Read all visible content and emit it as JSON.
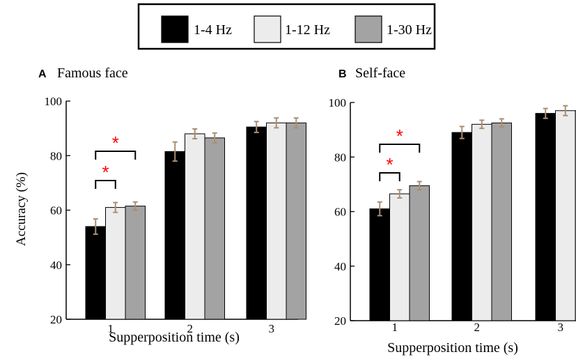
{
  "legend": {
    "items": [
      {
        "label": "1-4 Hz",
        "color": "#000000"
      },
      {
        "label": "1-12 Hz",
        "color": "#ececec"
      },
      {
        "label": "1-30 Hz",
        "color": "#a3a3a3"
      }
    ]
  },
  "colors": {
    "error_bar": "#a98e73",
    "significance": "#ff0000",
    "bracket": "#000000"
  },
  "significance_mark": "*",
  "chart_data": [
    {
      "type": "bar",
      "panel_letter": "A",
      "title": "Famous face",
      "xlabel": "Supperposition time (s)",
      "ylabel": "Accuracy (%)",
      "categories": [
        "1",
        "2",
        "3"
      ],
      "ylim": [
        20,
        100
      ],
      "yticks": [
        20,
        40,
        60,
        80,
        100
      ],
      "grid": false,
      "series": [
        {
          "name": "1-4 Hz",
          "values": [
            54,
            81.5,
            90.5
          ],
          "errors": [
            2.8,
            3.5,
            2.0
          ]
        },
        {
          "name": "1-12 Hz",
          "values": [
            61,
            88,
            92
          ],
          "errors": [
            1.8,
            1.8,
            1.8
          ]
        },
        {
          "name": "1-30 Hz",
          "values": [
            61.5,
            86.5,
            92
          ],
          "errors": [
            1.5,
            1.8,
            1.8
          ]
        }
      ],
      "significance": [
        {
          "category": "1",
          "from": "1-4 Hz",
          "to": "1-12 Hz",
          "label": "*"
        },
        {
          "category": "1",
          "from": "1-4 Hz",
          "to": "1-30 Hz",
          "label": "*"
        }
      ]
    },
    {
      "type": "bar",
      "panel_letter": "B",
      "title": "Self-face",
      "xlabel": "Supperposition time (s)",
      "ylabel": "",
      "categories": [
        "1",
        "2",
        "3"
      ],
      "ylim": [
        20,
        100
      ],
      "yticks": [
        20,
        40,
        60,
        80,
        100
      ],
      "grid": false,
      "series": [
        {
          "name": "1-4 Hz",
          "values": [
            61,
            89,
            96
          ],
          "errors": [
            2.5,
            2.2,
            1.8
          ]
        },
        {
          "name": "1-12 Hz",
          "values": [
            66.5,
            92,
            97
          ],
          "errors": [
            1.5,
            1.5,
            1.8
          ]
        },
        {
          "name": "1-30 Hz",
          "values": [
            69.5,
            92.5,
            97
          ],
          "errors": [
            1.5,
            1.5,
            1.5
          ]
        }
      ],
      "significance": [
        {
          "category": "1",
          "from": "1-4 Hz",
          "to": "1-12 Hz",
          "label": "*"
        },
        {
          "category": "1",
          "from": "1-4 Hz",
          "to": "1-30 Hz",
          "label": "*"
        }
      ]
    }
  ]
}
